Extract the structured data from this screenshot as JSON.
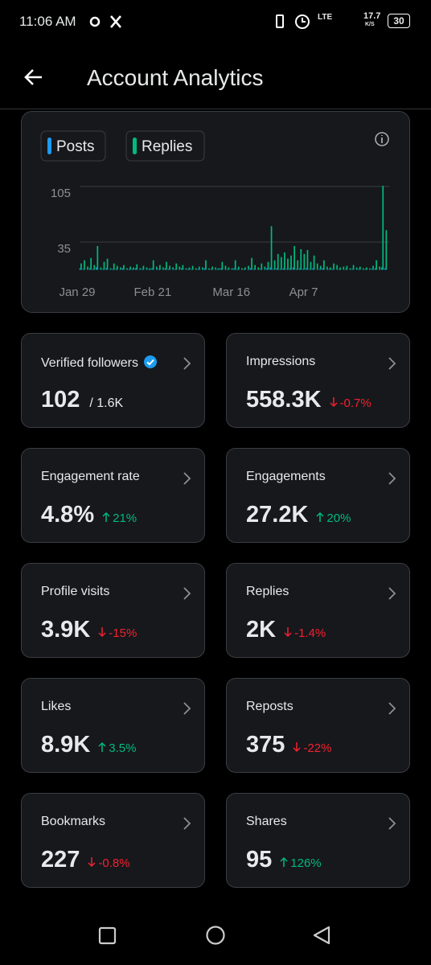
{
  "status_bar": {
    "time": "11:06 AM",
    "network": "LTE",
    "speed": "17.7",
    "speed_unit": "K/S",
    "battery": "30"
  },
  "header": {
    "title": "Account Analytics"
  },
  "chart_data": {
    "type": "bar",
    "legend": [
      "Posts",
      "Replies"
    ],
    "categories": [
      "Jan 29",
      null,
      null,
      null,
      null,
      null,
      null,
      null,
      null,
      null,
      null,
      null,
      null,
      null,
      null,
      null,
      null,
      null,
      null,
      null,
      null,
      null,
      null,
      "Feb 21",
      null,
      null,
      null,
      null,
      null,
      null,
      null,
      null,
      null,
      null,
      null,
      null,
      null,
      null,
      null,
      null,
      null,
      null,
      null,
      null,
      null,
      null,
      null,
      "Mar 16",
      null,
      null,
      null,
      null,
      null,
      null,
      null,
      null,
      null,
      null,
      null,
      null,
      null,
      null,
      null,
      null,
      null,
      null,
      null,
      null,
      null,
      "Apr 7",
      null,
      null,
      null,
      null,
      null,
      null,
      null,
      null,
      null,
      null,
      null,
      null,
      null,
      null,
      null,
      null,
      null,
      null,
      null,
      null,
      null,
      null,
      null,
      null,
      null
    ],
    "series": [
      {
        "name": "Posts",
        "color": "#1d9bf0",
        "values": [
          0,
          2,
          1,
          0,
          2,
          1,
          3,
          0,
          1,
          2,
          0,
          1,
          1,
          0,
          2,
          0,
          1,
          1,
          2,
          0,
          1,
          0,
          1,
          2,
          0,
          1,
          0,
          2,
          1,
          0,
          1,
          0,
          2,
          0,
          1,
          1,
          0,
          1,
          0,
          2,
          0,
          1,
          0,
          1,
          2,
          0,
          1,
          0,
          2,
          1,
          0,
          1,
          0,
          2,
          1,
          0,
          1,
          0,
          2,
          3,
          1,
          2,
          1,
          2,
          1,
          2,
          3,
          1,
          2,
          1,
          2,
          1,
          2,
          0,
          1,
          2,
          0,
          1,
          1,
          0,
          1,
          0,
          1,
          0,
          1,
          0,
          1,
          0,
          1,
          0,
          1,
          2,
          0,
          3,
          2
        ]
      },
      {
        "name": "Replies",
        "color": "#00ba7c",
        "values": [
          0,
          8,
          12,
          4,
          15,
          6,
          30,
          3,
          10,
          14,
          2,
          8,
          5,
          3,
          6,
          2,
          4,
          3,
          7,
          2,
          5,
          3,
          2,
          12,
          4,
          6,
          3,
          10,
          5,
          3,
          8,
          4,
          6,
          2,
          3,
          5,
          2,
          4,
          3,
          12,
          2,
          4,
          3,
          2,
          10,
          5,
          3,
          2,
          12,
          4,
          2,
          3,
          5,
          15,
          6,
          3,
          8,
          4,
          10,
          55,
          12,
          20,
          16,
          22,
          14,
          18,
          30,
          12,
          26,
          20,
          25,
          10,
          18,
          8,
          5,
          12,
          4,
          3,
          8,
          6,
          3,
          4,
          5,
          2,
          6,
          3,
          4,
          2,
          3,
          2,
          5,
          12,
          4,
          106,
          50
        ]
      }
    ],
    "ylim": [
      0,
      110
    ],
    "yticks": [
      35,
      105
    ],
    "grid": true
  },
  "metrics": [
    {
      "label": "Verified followers",
      "value": "102",
      "total": "/ 1.6K"
    },
    {
      "label": "Impressions",
      "value": "558.3K",
      "change": "-0.7%"
    },
    {
      "label": "Engagement rate",
      "value": "4.8%",
      "change": "21%"
    },
    {
      "label": "Engagements",
      "value": "27.2K",
      "change": "20%"
    },
    {
      "label": "Profile visits",
      "value": "3.9K",
      "change": "-15%"
    },
    {
      "label": "Replies",
      "value": "2K",
      "change": "-1.4%"
    },
    {
      "label": "Likes",
      "value": "8.9K",
      "change": "3.5%"
    },
    {
      "label": "Reposts",
      "value": "375",
      "change": "-22%"
    },
    {
      "label": "Bookmarks",
      "value": "227",
      "change": "-0.8%"
    },
    {
      "label": "Shares",
      "value": "95",
      "change": "126%"
    }
  ]
}
